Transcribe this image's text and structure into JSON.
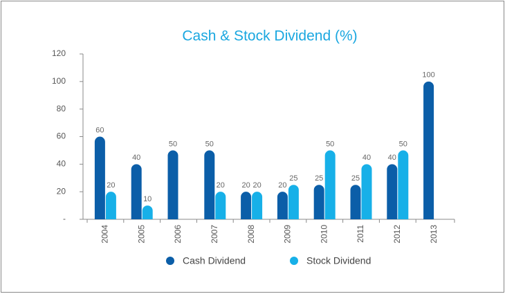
{
  "chart_data": {
    "type": "bar",
    "title": "Cash & Stock Dividend (%)",
    "categories": [
      "2004",
      "2005",
      "2006",
      "2007",
      "2008",
      "2009",
      "2010",
      "2011",
      "2012",
      "2013"
    ],
    "series": [
      {
        "name": "Cash Dividend",
        "color": "#0b5ea8",
        "values": [
          60,
          40,
          50,
          50,
          20,
          20,
          25,
          25,
          40,
          100
        ]
      },
      {
        "name": "Stock Dividend",
        "color": "#17b0e8",
        "values": [
          20,
          10,
          null,
          20,
          20,
          25,
          50,
          40,
          50,
          null
        ]
      }
    ],
    "ylim": [
      0,
      120
    ],
    "yticks": [
      {
        "value": 0,
        "label": "-"
      },
      20,
      40,
      60,
      80,
      100,
      120
    ],
    "grid": false,
    "legend": "bottom"
  }
}
